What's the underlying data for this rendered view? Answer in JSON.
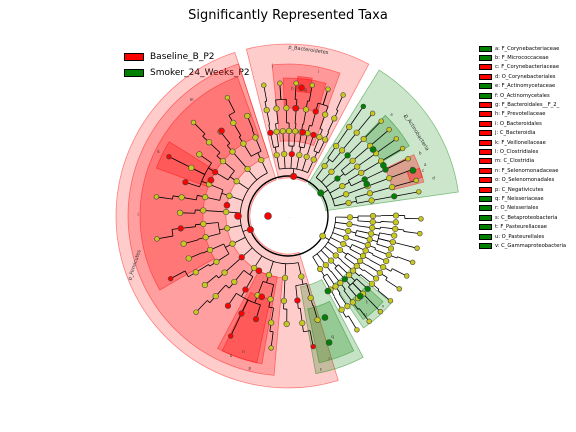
{
  "chart_data": {
    "type": "cladogram",
    "title": "Significantly Represented Taxa",
    "legend": [
      {
        "label": "Baseline_B_P2",
        "color": "#ff0000"
      },
      {
        "label": "Smoker_24_Weeks_P2",
        "color": "#008000"
      }
    ],
    "colors": {
      "baseline": "#ff0000",
      "smoker": "#008000",
      "non_significant": "#c8c81e"
    },
    "phylum_labels": [
      {
        "label": "p_Bacteroidetes",
        "group": "baseline"
      },
      {
        "label": "p_Actinobacteria",
        "group": "smoker"
      },
      {
        "label": "p_Firmicutes",
        "group": "baseline"
      }
    ],
    "clade_letters": [
      "a",
      "b",
      "c",
      "d",
      "e",
      "f",
      "g",
      "h",
      "i",
      "j",
      "k",
      "l",
      "m",
      "n",
      "o",
      "p",
      "q",
      "r",
      "s",
      "t",
      "u",
      "v"
    ],
    "biomarkers": [
      {
        "label": "a: F_Corynebacteriaceae",
        "group": "smoker"
      },
      {
        "label": "b: F_Micrococcaceae",
        "group": "smoker"
      },
      {
        "label": "c: F_Corynebacteriaceae",
        "group": "baseline"
      },
      {
        "label": "d: O_Corynebacteriales",
        "group": "baseline"
      },
      {
        "label": "e: F_Actinomycetaceae",
        "group": "smoker"
      },
      {
        "label": "f: O_Actinomycetales",
        "group": "smoker"
      },
      {
        "label": "g: F_Bacteroidales__F_2_",
        "group": "baseline"
      },
      {
        "label": "h: F_Prevotellaceae",
        "group": "baseline"
      },
      {
        "label": "i: O_Bacteroidales",
        "group": "baseline"
      },
      {
        "label": "j: C_Bacteroidia",
        "group": "baseline"
      },
      {
        "label": "k: F_Veillonellaceae",
        "group": "baseline"
      },
      {
        "label": "l: O_Clostridiales",
        "group": "baseline"
      },
      {
        "label": "m: C_Clostridia",
        "group": "baseline"
      },
      {
        "label": "n: F_Selenomonadaceae",
        "group": "baseline"
      },
      {
        "label": "o: O_Selenomonadales",
        "group": "baseline"
      },
      {
        "label": "p: C_Negativicutes",
        "group": "baseline"
      },
      {
        "label": "q: F_Neisseriaceae",
        "group": "smoker"
      },
      {
        "label": "r: O_Neisseriales",
        "group": "smoker"
      },
      {
        "label": "s: C_Betaproteobacteria",
        "group": "smoker"
      },
      {
        "label": "t: F_Pasteurellaceae",
        "group": "smoker"
      },
      {
        "label": "u: O_Pasteurellales",
        "group": "smoker"
      },
      {
        "label": "v: C_Gammaproteobacteria",
        "group": "smoker"
      }
    ]
  }
}
